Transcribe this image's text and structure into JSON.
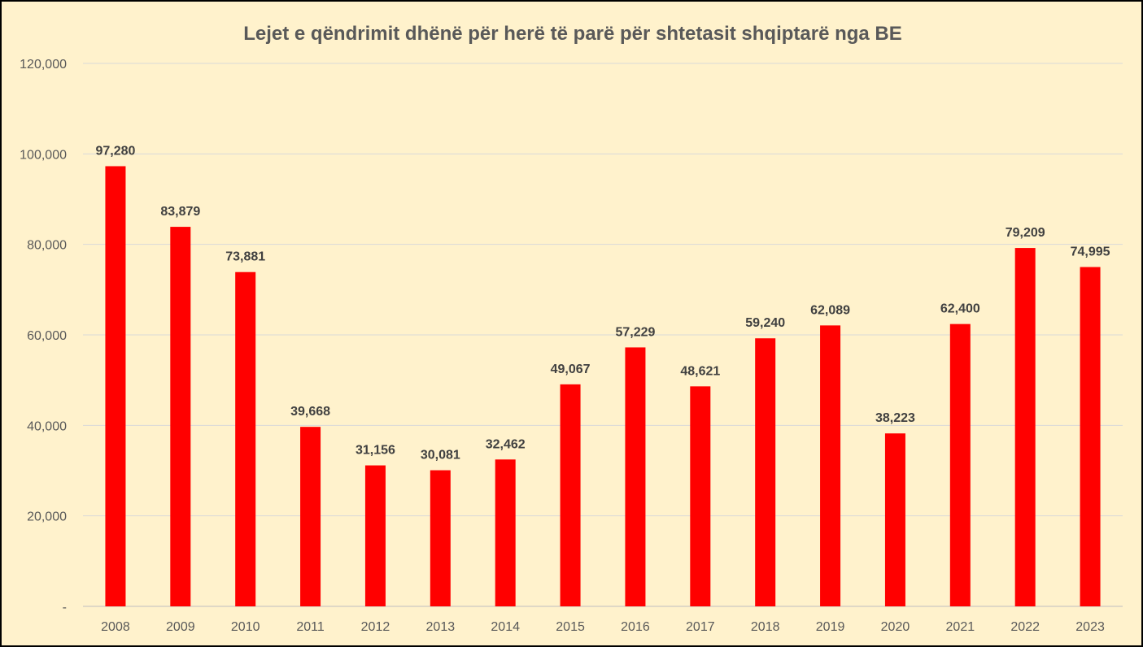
{
  "chart_data": {
    "type": "bar",
    "title": "Lejet e qëndrimit dhënë për herë të parë për shtetasit shqiptarë nga BE",
    "xlabel": "",
    "ylabel": "",
    "ylim": [
      0,
      120000
    ],
    "grid": true,
    "legend": "none",
    "bar_color": "#ff0000",
    "y_ticks": [
      {
        "value": 0,
        "label": "-"
      },
      {
        "value": 20000,
        "label": "20,000"
      },
      {
        "value": 40000,
        "label": "40,000"
      },
      {
        "value": 60000,
        "label": "60,000"
      },
      {
        "value": 80000,
        "label": "80,000"
      },
      {
        "value": 100000,
        "label": "100,000"
      },
      {
        "value": 120000,
        "label": "120,000"
      }
    ],
    "categories": [
      "2008",
      "2009",
      "2010",
      "2011",
      "2012",
      "2013",
      "2014",
      "2015",
      "2016",
      "2017",
      "2018",
      "2019",
      "2020",
      "2021",
      "2022",
      "2023"
    ],
    "values": [
      97280,
      83879,
      73881,
      39668,
      31156,
      30081,
      32462,
      49067,
      57229,
      48621,
      59240,
      62089,
      38223,
      62400,
      79209,
      74995
    ],
    "data_labels": [
      "97,280",
      "83,879",
      "73,881",
      "39,668",
      "31,156",
      "30,081",
      "32,462",
      "49,067",
      "57,229",
      "48,621",
      "59,240",
      "62,089",
      "38,223",
      "62,400",
      "79,209",
      "74,995"
    ]
  }
}
